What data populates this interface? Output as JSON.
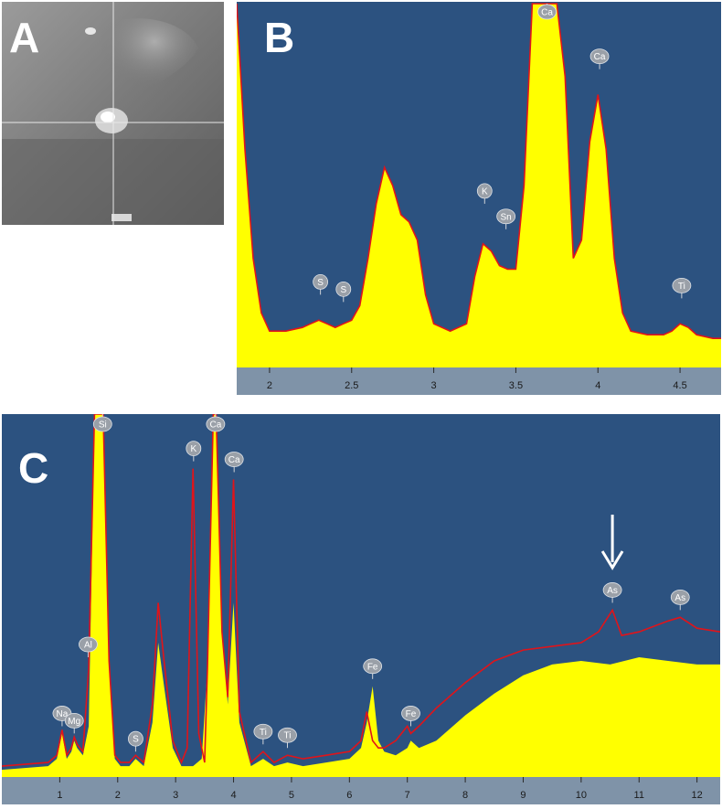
{
  "figure": {
    "panel_letters": [
      "A",
      "B",
      "C"
    ]
  },
  "colors": {
    "plot_background": "#2c5280",
    "spectrum_fill": "#ffff00",
    "overlay_line": "#e0141a",
    "axis_bar": "#7f93a8",
    "peak_label_fill": "#9aa0a8",
    "annotation_arrow": "#ffffff"
  },
  "chart_data": [
    {
      "panel": "B",
      "type": "area",
      "title": "",
      "xlabel": "",
      "ylabel": "",
      "xlim": [
        1.8,
        4.75
      ],
      "ylim": [
        0,
        100
      ],
      "xticks": [
        "2",
        "2.5",
        "3",
        "3.5",
        "4",
        "4.5"
      ],
      "xtick_values": [
        2,
        2.5,
        3,
        3.5,
        4,
        4.5
      ],
      "grid": false,
      "series": [
        {
          "x": [
            1.8,
            1.85,
            1.9,
            1.95,
            2.0,
            2.1,
            2.2,
            2.25,
            2.3,
            2.35,
            2.4,
            2.45,
            2.5,
            2.55,
            2.6,
            2.65,
            2.7,
            2.75,
            2.8,
            2.85,
            2.9,
            2.95,
            3.0,
            3.1,
            3.2,
            3.25,
            3.3,
            3.35,
            3.4,
            3.45,
            3.5,
            3.55,
            3.6,
            3.65,
            3.7,
            3.75,
            3.8,
            3.85,
            3.9,
            3.95,
            4.0,
            4.05,
            4.1,
            4.15,
            4.2,
            4.3,
            4.4,
            4.45,
            4.5,
            4.55,
            4.6,
            4.7,
            4.75
          ],
          "values": [
            100,
            60,
            30,
            15,
            10,
            10,
            11,
            12,
            13,
            12,
            11,
            12,
            13,
            17,
            30,
            45,
            55,
            50,
            42,
            40,
            35,
            20,
            12,
            10,
            12,
            25,
            34,
            32,
            28,
            27,
            27,
            50,
            100,
            100,
            100,
            100,
            80,
            30,
            35,
            62,
            75,
            60,
            30,
            15,
            10,
            9,
            9,
            10,
            12,
            11,
            9,
            8,
            8
          ]
        }
      ],
      "peak_labels": [
        {
          "label": "S",
          "x": 2.31,
          "y": 20
        },
        {
          "label": "S",
          "x": 2.45,
          "y": 18
        },
        {
          "label": "K",
          "x": 3.31,
          "y": 45
        },
        {
          "label": "Sn",
          "x": 3.44,
          "y": 38
        },
        {
          "label": "Ca",
          "x": 3.69,
          "y": 100
        },
        {
          "label": "Ca",
          "x": 4.01,
          "y": 82
        },
        {
          "label": "Ti",
          "x": 4.51,
          "y": 19
        }
      ]
    },
    {
      "panel": "C",
      "type": "area",
      "title": "",
      "xlabel": "",
      "ylabel": "",
      "xlim": [
        0,
        12.4
      ],
      "ylim": [
        0,
        100
      ],
      "xticks": [
        "1",
        "2",
        "3",
        "4",
        "5",
        "6",
        "7",
        "8",
        "9",
        "10",
        "11",
        "12"
      ],
      "xtick_values": [
        1,
        2,
        3,
        4,
        5,
        6,
        7,
        8,
        9,
        10,
        11,
        12
      ],
      "grid": false,
      "series": [
        {
          "name": "",
          "x": [
            0,
            0.8,
            0.95,
            1.04,
            1.12,
            1.2,
            1.25,
            1.3,
            1.4,
            1.5,
            1.6,
            1.65,
            1.75,
            1.85,
            1.95,
            2.05,
            2.2,
            2.31,
            2.45,
            2.6,
            2.7,
            2.8,
            2.95,
            3.1,
            3.2,
            3.3,
            3.45,
            3.55,
            3.65,
            3.7,
            3.8,
            3.9,
            4.0,
            4.1,
            4.3,
            4.51,
            4.7,
            4.93,
            5.2,
            5.6,
            6.0,
            6.2,
            6.3,
            6.4,
            6.5,
            6.6,
            6.8,
            7.0,
            7.06,
            7.2,
            7.5,
            8.0,
            8.5,
            9.0,
            9.5,
            10.0,
            10.5,
            11.0,
            11.5,
            12.0,
            12.4
          ],
          "values": [
            2,
            3,
            5,
            12,
            5,
            7,
            10,
            8,
            6,
            14,
            100,
            100,
            100,
            30,
            5,
            3,
            3,
            5,
            3,
            15,
            37,
            25,
            8,
            3,
            3,
            3,
            5,
            30,
            100,
            100,
            40,
            20,
            48,
            15,
            3,
            5,
            3,
            4,
            3,
            4,
            5,
            8,
            15,
            25,
            10,
            7,
            6,
            8,
            10,
            8,
            10,
            17,
            23,
            28,
            31,
            32,
            31,
            33,
            32,
            31,
            31
          ]
        },
        {
          "name": "",
          "x": [
            0,
            0.8,
            0.95,
            1.04,
            1.12,
            1.2,
            1.25,
            1.3,
            1.4,
            1.5,
            1.6,
            1.65,
            1.75,
            1.85,
            1.95,
            2.05,
            2.2,
            2.31,
            2.45,
            2.6,
            2.7,
            2.8,
            2.95,
            3.1,
            3.2,
            3.3,
            3.4,
            3.5,
            3.55,
            3.65,
            3.7,
            3.8,
            3.9,
            4.0,
            4.1,
            4.3,
            4.51,
            4.7,
            4.93,
            5.2,
            5.6,
            6.0,
            6.2,
            6.3,
            6.4,
            6.5,
            6.6,
            6.8,
            7.0,
            7.06,
            7.2,
            7.5,
            8.0,
            8.5,
            9.0,
            9.5,
            10.0,
            10.3,
            10.54,
            10.7,
            11.0,
            11.5,
            11.71,
            12.0,
            12.4
          ],
          "values": [
            3,
            4,
            6,
            13,
            6,
            8,
            11,
            9,
            7,
            30,
            100,
            100,
            100,
            32,
            6,
            4,
            4,
            6,
            4,
            20,
            48,
            32,
            10,
            4,
            8,
            85,
            12,
            4,
            30,
            100,
            100,
            40,
            22,
            82,
            18,
            4,
            7,
            4,
            6,
            5,
            6,
            7,
            10,
            18,
            10,
            8,
            8,
            10,
            14,
            12,
            14,
            19,
            26,
            32,
            35,
            36,
            37,
            40,
            46,
            39,
            40,
            43,
            44,
            41,
            40
          ]
        }
      ],
      "peak_labels": [
        {
          "label": "Na",
          "x": 1.04,
          "y": 14
        },
        {
          "label": "Mg",
          "x": 1.25,
          "y": 12
        },
        {
          "label": "Al",
          "x": 1.49,
          "y": 33
        },
        {
          "label": "Si",
          "x": 1.74,
          "y": 100
        },
        {
          "label": "S",
          "x": 2.31,
          "y": 7
        },
        {
          "label": "K",
          "x": 3.31,
          "y": 87
        },
        {
          "label": "Ca",
          "x": 3.69,
          "y": 100
        },
        {
          "label": "Ca",
          "x": 4.01,
          "y": 84
        },
        {
          "label": "Ti",
          "x": 4.51,
          "y": 9
        },
        {
          "label": "Ti",
          "x": 4.93,
          "y": 8
        },
        {
          "label": "Fe",
          "x": 6.4,
          "y": 27
        },
        {
          "label": "Fe",
          "x": 7.06,
          "y": 14
        },
        {
          "label": "As",
          "x": 10.54,
          "y": 48
        },
        {
          "label": "As",
          "x": 11.71,
          "y": 46
        }
      ],
      "annotations": [
        {
          "type": "arrow",
          "x": 10.54,
          "points_to": "As"
        }
      ]
    }
  ]
}
